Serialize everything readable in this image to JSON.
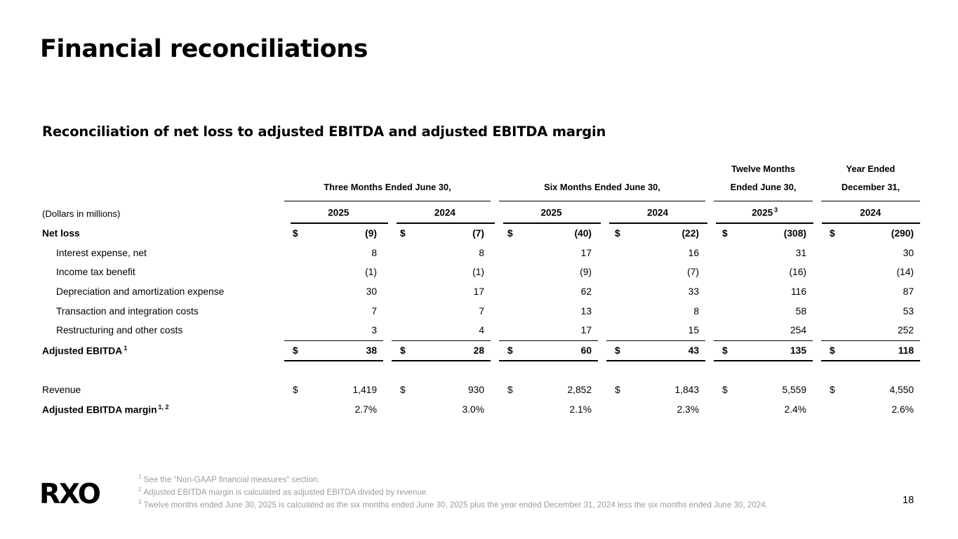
{
  "slide": {
    "title": "Financial reconciliations",
    "subtitle": "Reconciliation of net loss to adjusted EBITDA and adjusted EBITDA margin",
    "page_number": "18",
    "logo": "RXO"
  },
  "table": {
    "units_note": "(Dollars in millions)",
    "currency": "$",
    "header": {
      "groups": [
        {
          "lines": [
            "Three Months Ended June 30,"
          ],
          "span": 2
        },
        {
          "lines": [
            "Six Months Ended June 30,"
          ],
          "span": 2
        },
        {
          "lines": [
            "Twelve Months",
            "Ended June 30,"
          ],
          "span": 1
        },
        {
          "lines": [
            "Year Ended",
            "December 31,"
          ],
          "span": 1
        }
      ],
      "year_columns": [
        {
          "label": "2025",
          "sup": ""
        },
        {
          "label": "2024",
          "sup": ""
        },
        {
          "label": "2025",
          "sup": ""
        },
        {
          "label": "2024",
          "sup": ""
        },
        {
          "label": "2025",
          "sup": "3"
        },
        {
          "label": "2024",
          "sup": ""
        }
      ]
    },
    "rows": [
      {
        "label": "Net loss",
        "sup": "",
        "indent": false,
        "bold_label": true,
        "bold_values": true,
        "dollar": true,
        "total": false,
        "spacer_before": false,
        "values": [
          "(9)",
          "(7)",
          "(40)",
          "(22)",
          "(308)",
          "(290)"
        ]
      },
      {
        "label": "Interest expense, net",
        "sup": "",
        "indent": true,
        "bold_label": false,
        "bold_values": false,
        "dollar": false,
        "total": false,
        "spacer_before": false,
        "values": [
          "8",
          "8",
          "17",
          "16",
          "31",
          "30"
        ]
      },
      {
        "label": "Income tax benefit",
        "sup": "",
        "indent": true,
        "bold_label": false,
        "bold_values": false,
        "dollar": false,
        "total": false,
        "spacer_before": false,
        "values": [
          "(1)",
          "(1)",
          "(9)",
          "(7)",
          "(16)",
          "(14)"
        ]
      },
      {
        "label": "Depreciation and amortization expense",
        "sup": "",
        "indent": true,
        "bold_label": false,
        "bold_values": false,
        "dollar": false,
        "total": false,
        "spacer_before": false,
        "values": [
          "30",
          "17",
          "62",
          "33",
          "116",
          "87"
        ]
      },
      {
        "label": "Transaction and integration costs",
        "sup": "",
        "indent": true,
        "bold_label": false,
        "bold_values": false,
        "dollar": false,
        "total": false,
        "spacer_before": false,
        "values": [
          "7",
          "7",
          "13",
          "8",
          "58",
          "53"
        ]
      },
      {
        "label": "Restructuring and other costs",
        "sup": "",
        "indent": true,
        "bold_label": false,
        "bold_values": false,
        "dollar": false,
        "total": false,
        "spacer_before": false,
        "values": [
          "3",
          "4",
          "17",
          "15",
          "254",
          "252"
        ]
      },
      {
        "label": "Adjusted EBITDA",
        "sup": "1",
        "indent": false,
        "bold_label": true,
        "bold_values": true,
        "dollar": true,
        "total": true,
        "spacer_before": false,
        "values": [
          "38",
          "28",
          "60",
          "43",
          "135",
          "118"
        ]
      },
      {
        "label": "Revenue",
        "sup": "",
        "indent": false,
        "bold_label": false,
        "bold_values": false,
        "dollar": true,
        "total": false,
        "spacer_before": true,
        "values": [
          "1,419",
          "930",
          "2,852",
          "1,843",
          "5,559",
          "4,550"
        ]
      },
      {
        "label": "Adjusted EBITDA margin",
        "sup": "1, 2",
        "indent": false,
        "bold_label": true,
        "bold_values": false,
        "dollar": false,
        "total": false,
        "spacer_before": false,
        "values": [
          "2.7%",
          "3.0%",
          "2.1%",
          "2.3%",
          "2.4%",
          "2.6%"
        ]
      }
    ],
    "footnotes": [
      {
        "sup": "1",
        "text": "See the “Non-GAAP financial measures” section."
      },
      {
        "sup": "2",
        "text": "Adjusted EBITDA margin is calculated as adjusted EBITDA divided by revenue."
      },
      {
        "sup": "3",
        "text": "Twelve months ended June 30, 2025 is calculated as the six months ended June 30, 2025 plus the year ended December 31, 2024 less the six months ended June 30, 2024."
      }
    ]
  }
}
